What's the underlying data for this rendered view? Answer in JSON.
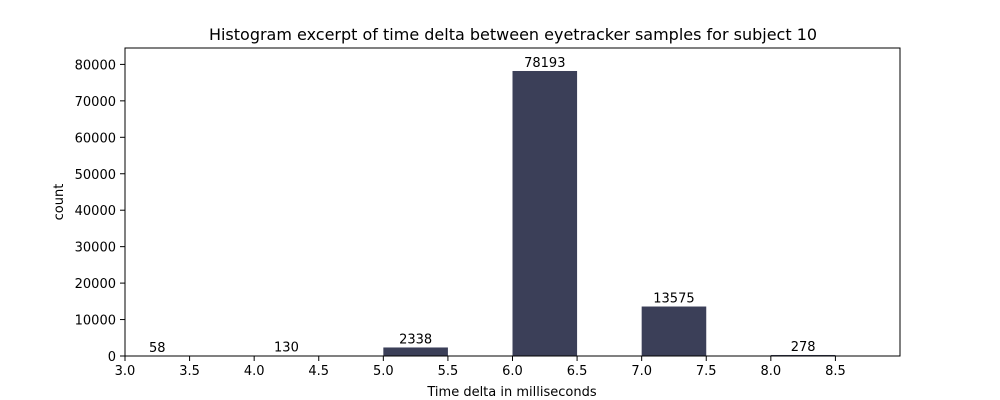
{
  "chart_data": {
    "type": "bar",
    "title": "Histogram excerpt of time delta between eyetracker samples for subject 10",
    "xlabel": "Time delta in milliseconds",
    "ylabel": "count",
    "xlim": [
      3.0,
      9.0
    ],
    "ylim": [
      0,
      84500
    ],
    "xticks": [
      "3.0",
      "3.5",
      "4.0",
      "4.5",
      "5.0",
      "5.5",
      "6.0",
      "6.5",
      "7.0",
      "7.5",
      "8.0",
      "8.5"
    ],
    "yticks": [
      "0",
      "10000",
      "20000",
      "30000",
      "40000",
      "50000",
      "60000",
      "70000",
      "80000"
    ],
    "bins": [
      {
        "start": 3.0,
        "end": 3.5,
        "value": 58,
        "label": "58"
      },
      {
        "start": 4.0,
        "end": 4.5,
        "value": 130,
        "label": "130"
      },
      {
        "start": 5.0,
        "end": 5.5,
        "value": 2338,
        "label": "2338"
      },
      {
        "start": 6.0,
        "end": 6.5,
        "value": 78193,
        "label": "78193"
      },
      {
        "start": 7.0,
        "end": 7.5,
        "value": 13575,
        "label": "13575"
      },
      {
        "start": 8.0,
        "end": 8.5,
        "value": 278,
        "label": "278"
      }
    ],
    "bar_color": "#3b3f58",
    "grid": false,
    "legend": "none"
  }
}
